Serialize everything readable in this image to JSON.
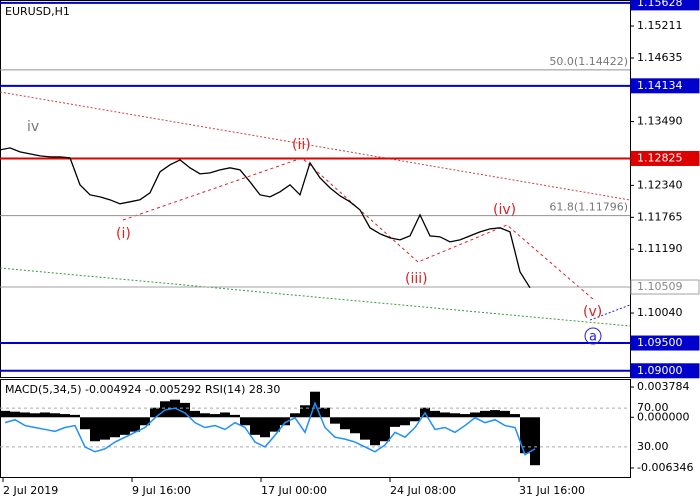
{
  "chart_data": [
    {
      "type": "line",
      "title": "EURUSD,H1",
      "color": "#000000",
      "values": [
        1.1298,
        1.13016,
        1.12944,
        1.12908,
        1.12872,
        1.12854,
        1.12854,
        1.12836,
        1.1235,
        1.1217,
        1.12134,
        1.1208,
        1.12008,
        1.12044,
        1.1208,
        1.12206,
        1.12584,
        1.1271,
        1.128,
        1.12656,
        1.12548,
        1.12566,
        1.1262,
        1.12656,
        1.1262,
        1.12404,
        1.1217,
        1.12134,
        1.12224,
        1.1235,
        1.1217,
        1.12746,
        1.12476,
        1.12296,
        1.12152,
        1.12044,
        1.11899,
        1.11575,
        1.11467,
        1.11395,
        1.11359,
        1.11431,
        1.11809,
        1.11431,
        1.11413,
        1.11323,
        1.11359,
        1.11431,
        1.11503,
        1.11557,
        1.11575,
        1.11503,
        1.10783,
        1.10495
      ],
      "ylim": [
        1.0887,
        1.1568
      ],
      "yticks": [
        1.15211,
        1.14635,
        {
          "value": 1.1349,
          "label": "1.13490"
        },
        {
          "value": 1.1234,
          "label": "1.12340"
        },
        1.11765,
        {
          "value": 1.1119,
          "label": "1.11190"
        },
        {
          "value": 1.1004,
          "label": "1.10040"
        }
      ],
      "hlines": [
        {
          "value": 1.15628,
          "label": "1.15628",
          "color": "#0000cc"
        },
        {
          "value": 1.14134,
          "label": "1.14134",
          "color": "#0000cc"
        },
        {
          "value": 1.12825,
          "label": "1.12825",
          "color": "#dd0000"
        },
        {
          "value": 1.10509,
          "label": "1.10509",
          "color": "#a0a0a0"
        },
        {
          "value": {
            "value": 1.095,
            "label": "1.09500"
          },
          "label": "1.09500",
          "color": "#0000cc"
        },
        {
          "value": 1.09,
          "label": "1.09000",
          "color": "#0000cc"
        }
      ],
      "fib_levels": [
        {
          "value": 1.14422,
          "label": "50.0(1.14422)"
        },
        {
          "value": 1.11796,
          "label": "61.8(1.11796)"
        }
      ],
      "annotations": [
        "iv",
        "(i)",
        "(ii)",
        "(iii)",
        "(iv)",
        "(v)",
        "a"
      ],
      "x_labels": [
        "2 Jul 2019",
        "9 Jul 16:00",
        "17 Jul 00:00",
        "24 Jul 08:00",
        "31 Jul 16:00"
      ]
    },
    {
      "type": "macd",
      "title": "MACD(5,34,5) -0.004924 -0.005292 RSI(14) 28.30",
      "histogram": {
        "color": "#000000",
        "values": [
          0.0008,
          0.0007,
          0.0006,
          0.0005,
          0.0006,
          0.0005,
          0.0004,
          0.0003,
          -0.0015,
          -0.003,
          -0.0028,
          -0.0025,
          -0.0022,
          -0.0018,
          -0.001,
          0.0012,
          0.002,
          0.0022,
          0.0018,
          0.0008,
          0.0005,
          0.0004,
          0.0006,
          0.0003,
          -0.001,
          -0.0022,
          -0.0025,
          -0.0018,
          -0.001,
          0.0005,
          0.0015,
          0.0032,
          0.0012,
          -0.0008,
          -0.0015,
          -0.002,
          -0.0028,
          -0.0035,
          -0.003,
          -0.0012,
          -0.001,
          -0.0005,
          0.0012,
          0.0008,
          0.0006,
          0.0005,
          0.0004,
          0.0006,
          0.0008,
          0.0009,
          0.0008,
          0.0004,
          -0.0045,
          -0.006
        ]
      },
      "rsi": {
        "color": "#1e90ff",
        "values": [
          55,
          58,
          52,
          50,
          48,
          46,
          50,
          52,
          30,
          25,
          28,
          35,
          40,
          45,
          50,
          60,
          68,
          70,
          65,
          55,
          50,
          52,
          48,
          55,
          50,
          35,
          30,
          42,
          55,
          60,
          45,
          75,
          50,
          40,
          38,
          35,
          30,
          25,
          32,
          45,
          40,
          50,
          65,
          48,
          50,
          45,
          52,
          60,
          55,
          58,
          52,
          50,
          22,
          28
        ]
      },
      "ylim": [
        -0.00735,
        0.00479
      ],
      "yticks": [
        0.003784,
        {
          "value": 0,
          "label": "0.000000"
        },
        -0.006346
      ],
      "y2lim": [
        0,
        100
      ],
      "y2ticks": [
        {
          "value": 70,
          "label": "70.00"
        },
        {
          "value": 30,
          "label": "30.00"
        }
      ]
    }
  ]
}
